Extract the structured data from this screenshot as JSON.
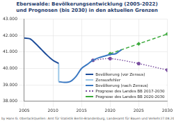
{
  "chart_data": {
    "type": "line",
    "title": "Eberswalde:  Bevölkerungsentwicklung (2005-2022) und Prognosen (bis 2030) in den aktuellen Grenzen",
    "annotations": [
      "by Hans G. Oberlack",
      "Quellen: Amt für Statistik Berlin-Brandenburg, Landesamt für Bauen und Verkehr",
      "27.08.2023"
    ],
    "series": [
      {
        "name": "Bevölkerung (vor Zensus)",
        "color": "#1f4e9a",
        "line_style": "solid",
        "marker": "none",
        "x": [
          2005,
          2006,
          2007,
          2008,
          2009,
          2010,
          2011
        ],
        "values": [
          41850,
          41800,
          41500,
          41150,
          40800,
          40500,
          40300
        ]
      },
      {
        "name": "Zensusfehler",
        "color": "#9ec9e8",
        "line_style": "solid",
        "marker": "none",
        "x": [
          2011,
          2011
        ],
        "values": [
          40300,
          39200
        ]
      },
      {
        "name": "Bevölkerung (nach Zensus)",
        "color": "#3a78c2",
        "line_style": "solid",
        "marker": "none",
        "x": [
          2011,
          2012,
          2013,
          2014,
          2015,
          2016,
          2017,
          2018,
          2019,
          2020,
          2021,
          2022
        ],
        "values": [
          39200,
          39150,
          39200,
          39500,
          40000,
          40250,
          40500,
          40650,
          40750,
          40850,
          40900,
          41150
        ]
      },
      {
        "name": "Prognose des Landes BB 2017-2030",
        "color": "#7a4fa0",
        "line_style": "dotted",
        "marker": "circle",
        "x": [
          2017,
          2020,
          2025,
          2030
        ],
        "values": [
          40500,
          40600,
          40300,
          39900
        ]
      },
      {
        "name": "Prognose des Landes BB 2020-2030",
        "color": "#3caa3c",
        "line_style": "dashed",
        "marker": "diamond",
        "x": [
          2020,
          2025,
          2030
        ],
        "values": [
          40900,
          41500,
          42100
        ]
      }
    ],
    "xlim": [
      2005,
      2030
    ],
    "xticks": [
      2005,
      2010,
      2015,
      2020,
      2025,
      2030
    ],
    "ylim": [
      38000,
      43000
    ],
    "yticks": [
      {
        "value": 38000,
        "label": "38.000"
      },
      {
        "value": 39000,
        "label": "39.000"
      },
      {
        "value": 40000,
        "label": "40.000"
      },
      {
        "value": 41000,
        "label": "41.000"
      },
      {
        "value": 42000,
        "label": "42.000"
      },
      {
        "value": 43000,
        "label": "43.000"
      }
    ],
    "grid": true,
    "legend": "lower right"
  }
}
